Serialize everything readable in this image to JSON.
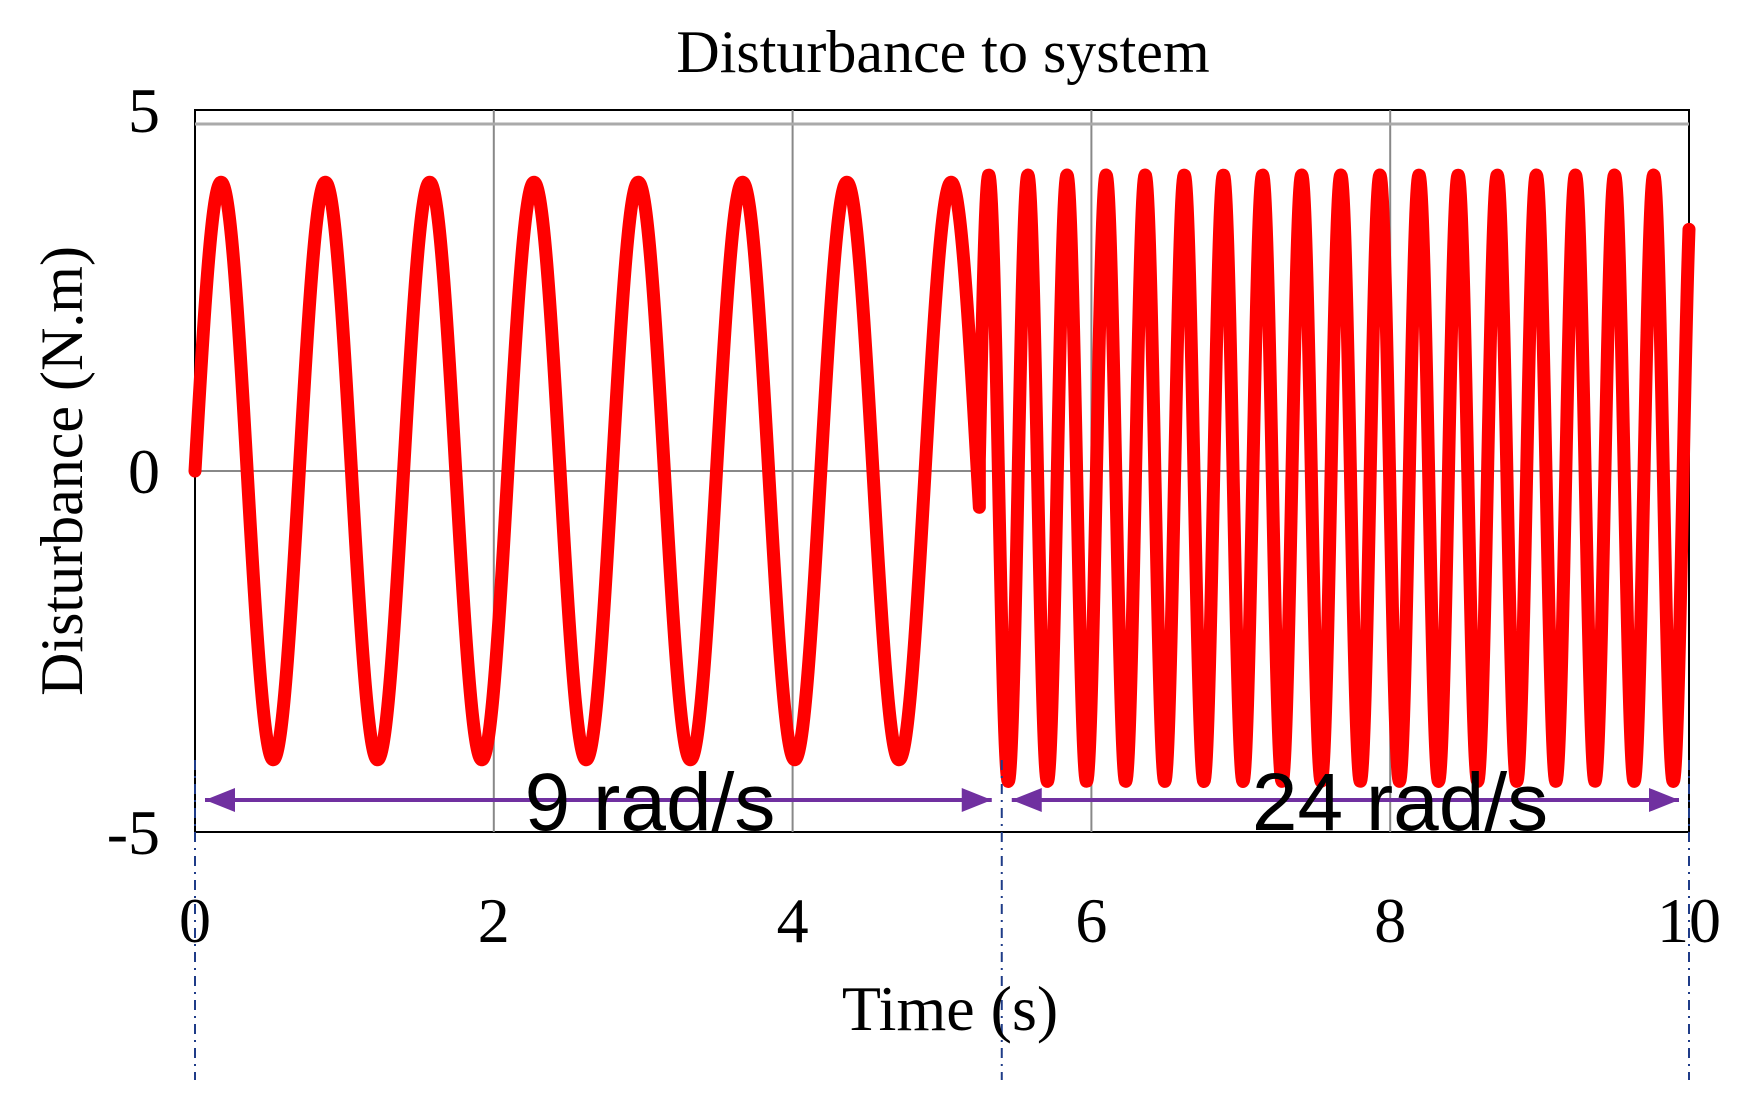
{
  "chart_data": {
    "type": "line",
    "title": "Disturbance to system",
    "xlabel": "Time (s)",
    "ylabel": "Disturbance (N.m)",
    "xlim": [
      0,
      10
    ],
    "ylim": [
      -5,
      5
    ],
    "xticks": [
      0,
      2,
      4,
      6,
      8,
      10
    ],
    "xtick_labels": [
      "0",
      "2",
      "4",
      "6",
      "8",
      "10"
    ],
    "yticks": [
      -5,
      0,
      5
    ],
    "ytick_labels": [
      "-5",
      "0",
      "5"
    ],
    "grid": true,
    "series": [
      {
        "color": "#ff0000",
        "segments": [
          {
            "t_start": 0,
            "t_end": 5.25,
            "amplitude": 4,
            "omega": 9,
            "phase_shift": 0
          },
          {
            "t_start": 5.25,
            "t_end": 10,
            "amplitude": 4.2,
            "omega": 24,
            "offset": -0.1
          }
        ]
      }
    ],
    "annotations": [
      {
        "text": "9 rad/s",
        "x_start": 0,
        "x_end": 5.4
      },
      {
        "text": "24 rad/s",
        "x_start": 5.4,
        "x_end": 10
      }
    ],
    "annotation_color": "#7030a0",
    "guide_line_color": "#1f3c88"
  }
}
